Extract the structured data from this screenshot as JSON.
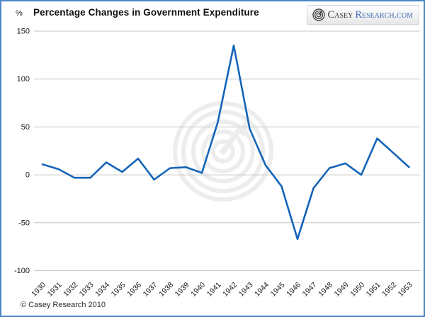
{
  "header": {
    "title": "Percentage Changes in Government Expenditure",
    "y_axis_unit": "%"
  },
  "logo": {
    "icon": "spiral-icon",
    "part1": "Casey",
    "part2": "Research.com"
  },
  "footer": {
    "copyright": "© Casey Research 2010"
  },
  "watermark": {
    "icon": "casey-spiral-watermark",
    "color": "#ededed"
  },
  "chart_data": {
    "type": "line",
    "title": "Percentage Changes in Government Expenditure",
    "xlabel": "",
    "ylabel": "%",
    "x": [
      1930,
      1931,
      1932,
      1933,
      1934,
      1935,
      1936,
      1937,
      1938,
      1939,
      1940,
      1941,
      1942,
      1943,
      1944,
      1945,
      1946,
      1947,
      1948,
      1949,
      1950,
      1951,
      1952,
      1953
    ],
    "series": [
      {
        "name": "Percentage change in government expenditure",
        "color": "#1464b8",
        "values": [
          11,
          6,
          -3,
          -3,
          13,
          3,
          17,
          -5,
          7,
          8,
          2,
          55,
          135,
          48,
          10,
          -12,
          -67,
          -14,
          7,
          12,
          0,
          38,
          23,
          8
        ]
      }
    ],
    "ylim": [
      -100,
      150
    ],
    "yticks": [
      150,
      100,
      50,
      0,
      -50,
      -100
    ],
    "grid": true,
    "grid_color": "#c6c6c6",
    "tick_label_color": "#1a1a1a",
    "legend": "none"
  }
}
